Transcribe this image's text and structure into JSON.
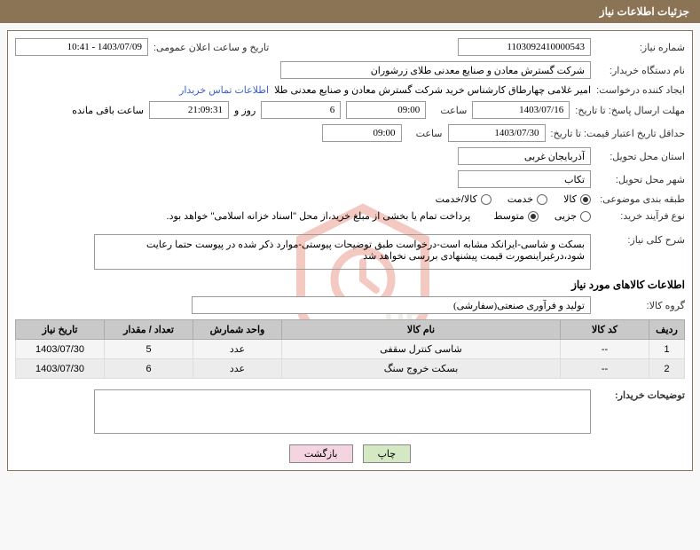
{
  "header": {
    "title": "جزئیات اطلاعات نیاز"
  },
  "form": {
    "need_number_label": "شماره نیاز:",
    "need_number": "1103092410000543",
    "announce_label": "تاریخ و ساعت اعلان عمومی:",
    "announce_value": "1403/07/09 - 10:41",
    "buyer_device_label": "نام دستگاه خریدار:",
    "buyer_device": "شرکت گسترش معادن و صنایع معدنی طلای زرشوران",
    "requester_label": "ایجاد کننده درخواست:",
    "requester": "امیر غلامی چهارطاق کارشناس خرید شرکت گسترش معادن و صنایع معدنی طلا",
    "contact_link": "اطلاعات تماس خریدار",
    "response_until_label": "مهلت ارسال پاسخ: تا تاریخ:",
    "response_date": "1403/07/16",
    "hour_label": "ساعت",
    "response_hour": "09:00",
    "days_count": "6",
    "days_and": "روز و",
    "countdown": "21:09:31",
    "remaining": "ساعت باقی مانده",
    "validity_label": "حداقل تاریخ اعتبار قیمت: تا تاریخ:",
    "validity_date": "1403/07/30",
    "validity_hour": "09:00",
    "province_label": "استان محل تحویل:",
    "province": "آذربایجان غربی",
    "city_label": "شهر محل تحویل:",
    "city": "تکاب",
    "category_label": "طبقه بندی موضوعی:",
    "cat_goods": "کالا",
    "cat_service": "خدمت",
    "cat_both": "کالا/خدمت",
    "purchase_type_label": "نوع فرآیند خرید:",
    "pt_minor": "جزیی",
    "pt_medium": "متوسط",
    "payment_note": "پرداخت تمام یا بخشی از مبلغ خرید،از محل \"اسناد خزانه اسلامی\" خواهد بود.",
    "desc_label": "شرح کلی نیاز:",
    "desc": "بسکت و شاسی-ایرانکد مشابه است-درخواست طبق توضیحات پیوستی-موارد ذکر شده در پیوست حتما رعایت شود،درغیراینصورت قیمت پیشنهادی بررسی نخواهد شد",
    "goods_info_title": "اطلاعات کالاهای مورد نیاز",
    "group_label": "گروه کالا:",
    "group": "تولید و فرآوری صنعتی(سفارشی)",
    "buyer_notes_label": "توضیحات خریدار:",
    "buyer_notes": ""
  },
  "table": {
    "headers": {
      "row": "ردیف",
      "code": "کد کالا",
      "name": "نام کالا",
      "unit": "واحد شمارش",
      "qty": "تعداد / مقدار",
      "date": "تاریخ نیاز"
    },
    "rows": [
      {
        "idx": "1",
        "code": "--",
        "name": "شاسی کنترل سقفی",
        "unit": "عدد",
        "qty": "5",
        "date": "1403/07/30"
      },
      {
        "idx": "2",
        "code": "--",
        "name": "بسکت خروج سنگ",
        "unit": "عدد",
        "qty": "6",
        "date": "1403/07/30"
      }
    ]
  },
  "buttons": {
    "print": "چاپ",
    "back": "بازگشت"
  },
  "colors": {
    "header_bg": "#8b7355",
    "border": "#8b7355",
    "link": "#3b5fcc",
    "th_bg": "#c9c9c9",
    "btn_print": "#d4e8c4",
    "btn_back": "#f4d4e0",
    "watermark": "#d94f3a"
  }
}
